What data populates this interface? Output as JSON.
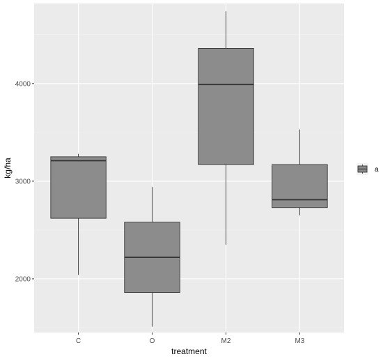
{
  "chart_data": {
    "type": "boxplot",
    "title": "",
    "xlabel": "treatment",
    "ylabel": "kg/ha",
    "ylim": [
      1450,
      4820
    ],
    "yticks": [
      2000,
      3000,
      4000
    ],
    "ytick_labels": [
      "2000",
      "3000",
      "4000"
    ],
    "grid": true,
    "legend": {
      "placement": "right",
      "items": [
        {
          "label": "a"
        }
      ]
    },
    "categories": [
      "C",
      "O",
      "M2",
      "M3"
    ],
    "boxes": [
      {
        "category": "C",
        "whisker_low": 2040,
        "q1": 2620,
        "median": 3210,
        "q3": 3250,
        "whisker_high": 3280
      },
      {
        "category": "O",
        "whisker_low": 1510,
        "q1": 1860,
        "median": 2220,
        "q3": 2580,
        "whisker_high": 2940
      },
      {
        "category": "M2",
        "whisker_low": 2350,
        "q1": 3170,
        "median": 3990,
        "q3": 4360,
        "whisker_high": 4740
      },
      {
        "category": "M3",
        "whisker_low": 2650,
        "q1": 2730,
        "median": 2810,
        "q3": 3170,
        "whisker_high": 3530
      }
    ],
    "colors": {
      "panel_background": "#ebebeb",
      "major_grid": "#ffffff",
      "minor_grid": "#f5f5f5",
      "box_fill": "#8c8c8c",
      "box_stroke": "#333333",
      "tick_color": "#333333"
    }
  }
}
